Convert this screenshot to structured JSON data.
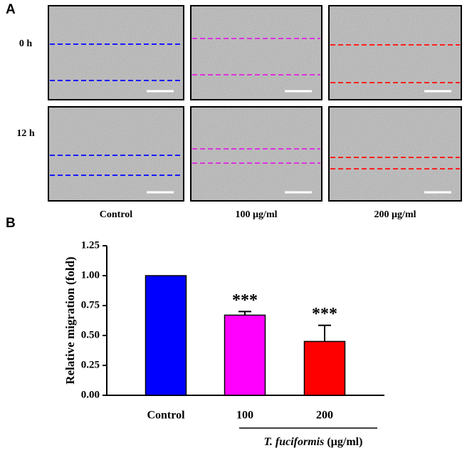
{
  "panel_a": {
    "label": "A",
    "rows": [
      "0 h",
      "12 h"
    ],
    "columns": [
      "Control",
      "100 µg/ml",
      "200 µg/ml"
    ]
  },
  "chart_data": {
    "type": "bar",
    "panel_label": "B",
    "ylabel": "Relative migration (fold)",
    "categories": [
      "Control",
      "100",
      "200"
    ],
    "values": [
      1.0,
      0.67,
      0.45
    ],
    "errors": [
      0,
      0.03,
      0.135
    ],
    "colors": [
      "#0000ff",
      "#ff00ff",
      "#ff0000"
    ],
    "significance": [
      null,
      "***",
      "***"
    ],
    "xlabel": {
      "species": "T. fuciformis",
      "unit": "(µg/ml)"
    },
    "ylim": [
      0,
      1.25
    ],
    "yticks": [
      {
        "value": 0,
        "label": "0.00"
      },
      {
        "value": 0.25,
        "label": "0.25"
      },
      {
        "value": 0.5,
        "label": "0.50"
      },
      {
        "value": 0.75,
        "label": "0.75"
      },
      {
        "value": 1,
        "label": "1.00"
      },
      {
        "value": 1.25,
        "label": "1.25"
      }
    ]
  }
}
